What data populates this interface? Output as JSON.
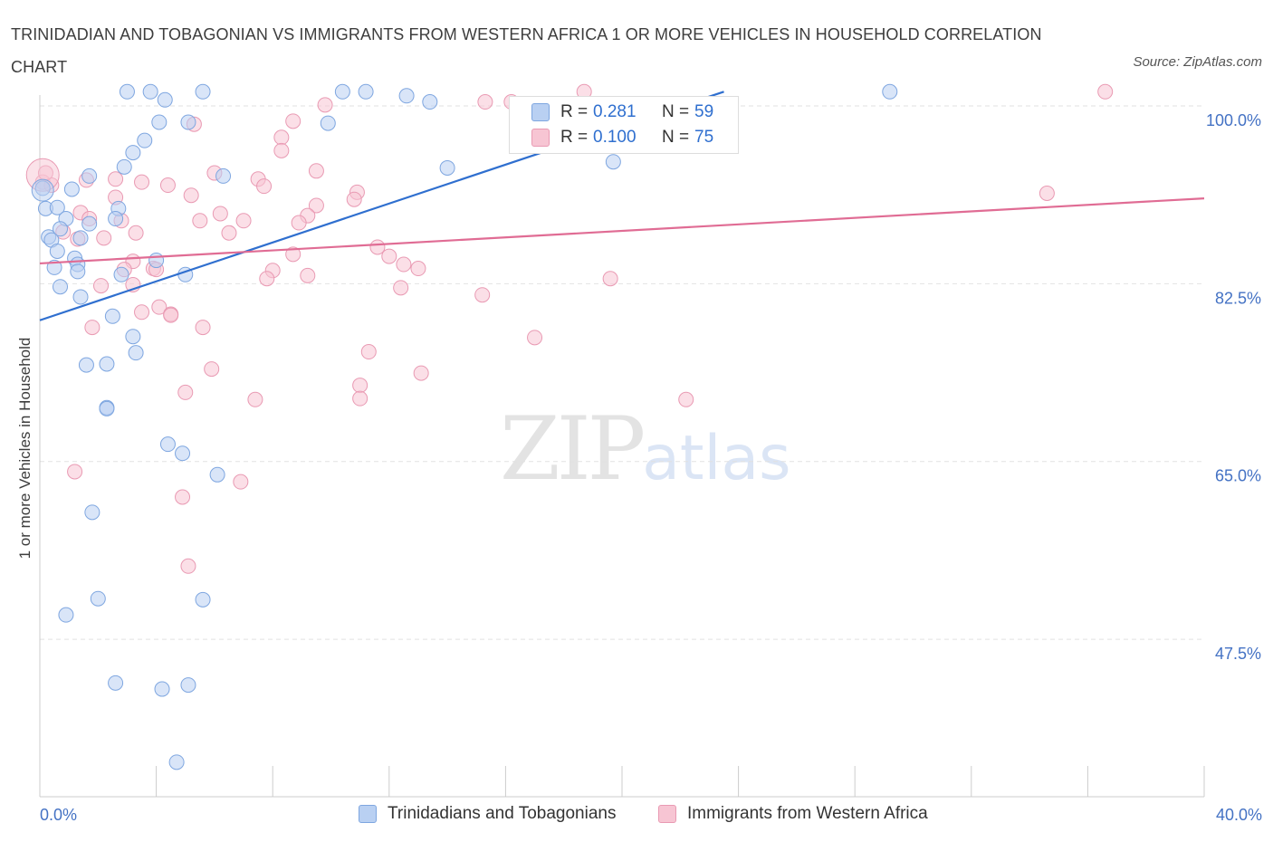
{
  "header": {
    "title": "TRINIDADIAN AND TOBAGONIAN VS IMMIGRANTS FROM WESTERN AFRICA 1 OR MORE VEHICLES IN HOUSEHOLD CORRELATION CHART",
    "source": "Source: ZipAtlas.com"
  },
  "watermark": {
    "zip": "ZIP",
    "atlas": "atlas"
  },
  "legend": {
    "series1": {
      "r_label": "R =",
      "r_value": "0.281",
      "n_label": "N =",
      "n_value": "59"
    },
    "series2": {
      "r_label": "R =",
      "r_value": "0.100",
      "n_label": "N =",
      "n_value": "75"
    }
  },
  "colors": {
    "blue_fill": "#b9d0f2",
    "blue_stroke": "#7ea6e0",
    "blue_line": "#2f6fcf",
    "pink_fill": "#f7c5d3",
    "pink_stroke": "#e99ab3",
    "pink_line": "#e06c94",
    "axis_text": "#4472c4",
    "grid": "#e2e2e2"
  },
  "chart_data": {
    "type": "scatter",
    "title": "TRINIDADIAN AND TOBAGONIAN VS IMMIGRANTS FROM WESTERN AFRICA 1 OR MORE VEHICLES IN HOUSEHOLD CORRELATION CHART",
    "xlabel": "",
    "ylabel": "1 or more Vehicles in Household",
    "xlim": [
      0,
      40
    ],
    "ylim": [
      32,
      101
    ],
    "x_tick_labels": [
      "0.0%",
      "40.0%"
    ],
    "y_ticks": [
      47.5,
      65.0,
      82.5,
      100.0
    ],
    "y_tick_labels": [
      "47.5%",
      "65.0%",
      "82.5%",
      "100.0%"
    ],
    "grid": true,
    "legend_position": "bottom",
    "series": [
      {
        "name": "Trinidadians and Tobagonians",
        "color": "#7ea6e0",
        "trend": {
          "x": [
            0.0,
            23.5
          ],
          "y": [
            78.9,
            101.4
          ]
        },
        "points": [
          [
            3.0,
            101.4
          ],
          [
            3.8,
            101.4
          ],
          [
            5.6,
            101.4
          ],
          [
            10.4,
            101.4
          ],
          [
            11.2,
            101.4
          ],
          [
            12.6,
            101.0
          ],
          [
            29.2,
            101.4
          ],
          [
            4.3,
            100.6
          ],
          [
            13.4,
            100.4
          ],
          [
            4.1,
            98.4
          ],
          [
            5.1,
            98.4
          ],
          [
            9.9,
            98.3
          ],
          [
            3.6,
            96.6
          ],
          [
            3.2,
            95.4
          ],
          [
            2.9,
            94.0
          ],
          [
            14.0,
            93.9
          ],
          [
            19.7,
            94.5
          ],
          [
            1.7,
            93.1
          ],
          [
            6.3,
            93.1
          ],
          [
            1.1,
            91.8
          ],
          [
            0.1,
            91.9
          ],
          [
            0.2,
            89.9
          ],
          [
            0.6,
            90.0
          ],
          [
            2.7,
            89.9
          ],
          [
            0.9,
            88.9
          ],
          [
            1.7,
            88.4
          ],
          [
            0.7,
            87.9
          ],
          [
            0.3,
            87.1
          ],
          [
            2.6,
            88.9
          ],
          [
            0.4,
            86.8
          ],
          [
            1.4,
            87.0
          ],
          [
            0.6,
            85.7
          ],
          [
            1.2,
            85.0
          ],
          [
            1.3,
            84.4
          ],
          [
            0.5,
            84.1
          ],
          [
            1.3,
            83.7
          ],
          [
            4.0,
            84.8
          ],
          [
            5.0,
            83.4
          ],
          [
            2.8,
            83.4
          ],
          [
            0.7,
            82.2
          ],
          [
            1.4,
            81.2
          ],
          [
            2.5,
            79.3
          ],
          [
            3.2,
            77.3
          ],
          [
            3.3,
            75.7
          ],
          [
            2.3,
            74.6
          ],
          [
            1.6,
            74.5
          ],
          [
            2.3,
            70.3
          ],
          [
            2.3,
            70.2
          ],
          [
            4.4,
            66.7
          ],
          [
            4.9,
            65.8
          ],
          [
            6.1,
            63.7
          ],
          [
            1.8,
            60.0
          ],
          [
            2.0,
            51.5
          ],
          [
            5.6,
            51.4
          ],
          [
            0.9,
            49.9
          ],
          [
            2.6,
            43.2
          ],
          [
            5.1,
            43.0
          ],
          [
            4.2,
            42.6
          ],
          [
            4.7,
            35.4
          ]
        ]
      },
      {
        "name": "Immigrants from Western Africa",
        "color": "#e99ab3",
        "trend": {
          "x": [
            0.0,
            40.0
          ],
          "y": [
            84.5,
            90.9
          ]
        },
        "points": [
          [
            18.7,
            101.4
          ],
          [
            36.6,
            101.4
          ],
          [
            16.2,
            100.4
          ],
          [
            9.8,
            100.1
          ],
          [
            0.1,
            92.5
          ],
          [
            0.4,
            92.2
          ],
          [
            1.6,
            92.7
          ],
          [
            0.2,
            93.4
          ],
          [
            5.3,
            98.2
          ],
          [
            8.7,
            98.5
          ],
          [
            8.3,
            96.9
          ],
          [
            6.0,
            93.4
          ],
          [
            9.5,
            93.6
          ],
          [
            8.3,
            95.6
          ],
          [
            7.5,
            92.8
          ],
          [
            3.5,
            92.5
          ],
          [
            4.4,
            92.2
          ],
          [
            7.7,
            92.1
          ],
          [
            5.2,
            91.2
          ],
          [
            10.9,
            91.5
          ],
          [
            2.6,
            91.0
          ],
          [
            10.8,
            90.8
          ],
          [
            9.5,
            90.2
          ],
          [
            1.4,
            89.5
          ],
          [
            6.2,
            89.4
          ],
          [
            9.2,
            89.2
          ],
          [
            5.5,
            88.7
          ],
          [
            8.9,
            88.5
          ],
          [
            0.8,
            87.6
          ],
          [
            1.7,
            88.9
          ],
          [
            7.0,
            88.7
          ],
          [
            2.8,
            88.7
          ],
          [
            3.3,
            87.5
          ],
          [
            6.5,
            87.5
          ],
          [
            11.6,
            86.1
          ],
          [
            12.0,
            85.2
          ],
          [
            1.3,
            86.9
          ],
          [
            2.2,
            87.0
          ],
          [
            3.2,
            84.7
          ],
          [
            8.7,
            85.4
          ],
          [
            12.5,
            84.4
          ],
          [
            3.9,
            84.0
          ],
          [
            2.9,
            83.9
          ],
          [
            4.0,
            83.9
          ],
          [
            8.0,
            83.8
          ],
          [
            9.2,
            83.3
          ],
          [
            7.8,
            83.0
          ],
          [
            13.0,
            84.0
          ],
          [
            19.6,
            83.0
          ],
          [
            3.2,
            82.4
          ],
          [
            2.1,
            82.3
          ],
          [
            12.4,
            82.1
          ],
          [
            15.2,
            81.4
          ],
          [
            4.1,
            80.2
          ],
          [
            3.5,
            79.7
          ],
          [
            4.5,
            79.5
          ],
          [
            4.5,
            79.4
          ],
          [
            5.6,
            78.2
          ],
          [
            1.8,
            78.2
          ],
          [
            17.0,
            77.2
          ],
          [
            11.3,
            75.8
          ],
          [
            5.9,
            74.1
          ],
          [
            13.1,
            73.7
          ],
          [
            11.0,
            72.5
          ],
          [
            5.0,
            71.8
          ],
          [
            7.4,
            71.1
          ],
          [
            11.0,
            71.2
          ],
          [
            22.2,
            71.1
          ],
          [
            1.2,
            64.0
          ],
          [
            4.9,
            61.5
          ],
          [
            6.9,
            63.0
          ],
          [
            5.1,
            54.7
          ],
          [
            34.6,
            91.4
          ],
          [
            15.3,
            100.4
          ],
          [
            2.6,
            92.8
          ]
        ]
      }
    ]
  },
  "bottom_legend": {
    "series1_label": "Trinidadians and Tobagonians",
    "series2_label": "Immigrants from Western Africa"
  }
}
